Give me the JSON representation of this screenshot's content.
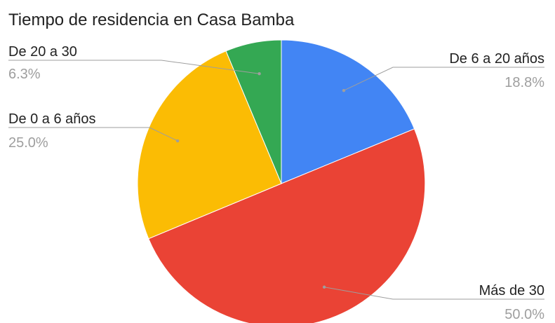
{
  "chart_data": {
    "type": "pie",
    "title": "Tiempo de residencia en Casa Bamba",
    "slices": [
      {
        "label": "De 6 a 20 años",
        "value": 18.8,
        "percent_label": "18.8%",
        "color": "#4285f4"
      },
      {
        "label": "Más de 30",
        "value": 50.0,
        "percent_label": "50.0%",
        "color": "#ea4335"
      },
      {
        "label": "De 0 a 6 años",
        "value": 25.0,
        "percent_label": "25.0%",
        "color": "#fbbc04"
      },
      {
        "label": "De 20 a 30",
        "value": 6.3,
        "percent_label": "6.3%",
        "color": "#34a853"
      }
    ]
  }
}
